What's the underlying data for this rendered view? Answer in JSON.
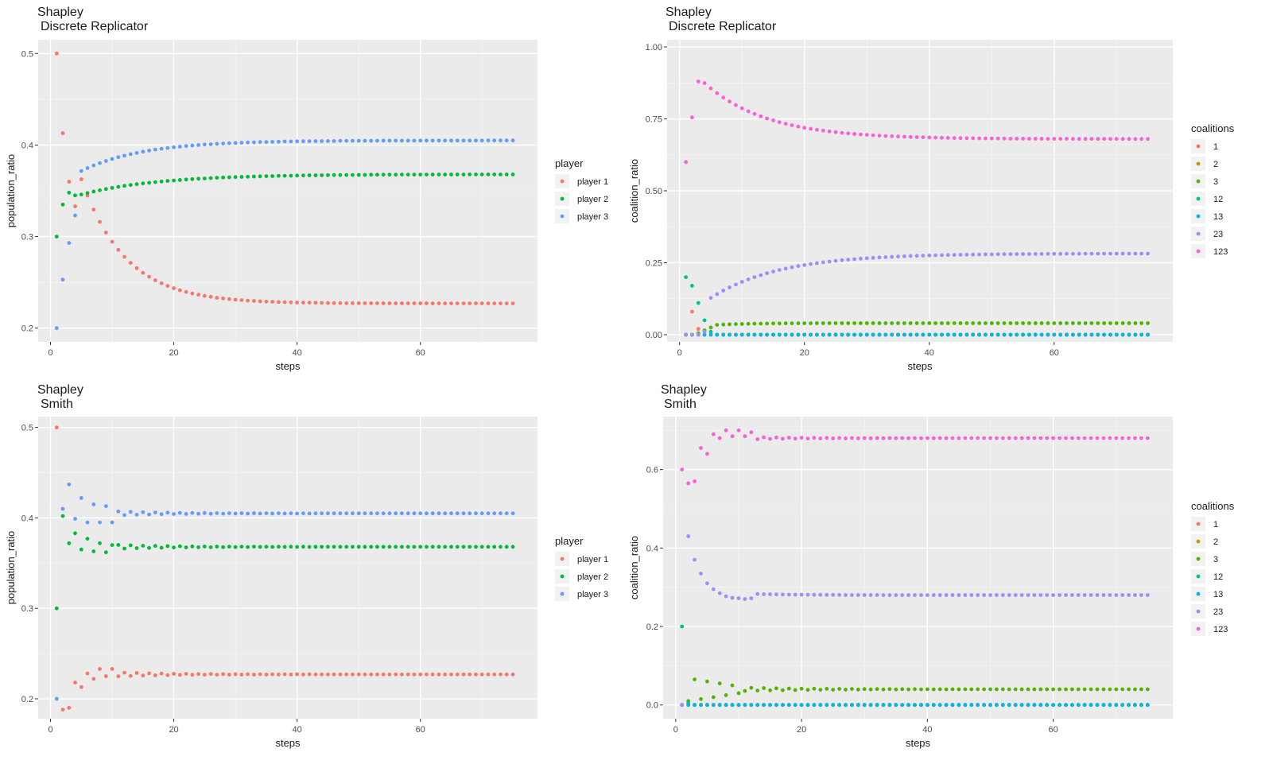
{
  "chart_data": [
    {
      "type": "scatter",
      "title": "Shapley",
      "subtitle": "Discrete Replicator",
      "xlabel": "steps",
      "ylabel": "population_ratio",
      "xlim": [
        -2,
        79
      ],
      "ylim": [
        0.185,
        0.515
      ],
      "xticks": [
        "0",
        "20",
        "40",
        "60"
      ],
      "yticks": [
        "0.2",
        "0.3",
        "0.4",
        "0.5"
      ],
      "xtick_values": [
        0,
        20,
        40,
        60
      ],
      "ytick_values": [
        0.2,
        0.3,
        0.4,
        0.5
      ],
      "grid": true,
      "legend_title": "player",
      "legend_position": "right",
      "series": [
        {
          "name": "player 1",
          "color": "#F8766D",
          "model": "decay",
          "start": 0.5,
          "end": 0.227,
          "rate": 0.14,
          "points": [
            [
              1,
              0.5
            ],
            [
              2,
              0.413
            ],
            [
              3,
              0.36
            ],
            [
              4,
              0.333
            ]
          ]
        },
        {
          "name": "player 2",
          "color": "#00BA38",
          "model": "decay",
          "start": 0.335,
          "end": 0.368,
          "rate": 0.08,
          "points": [
            [
              1,
              0.3
            ],
            [
              2,
              0.335
            ],
            [
              3,
              0.348
            ],
            [
              4,
              0.345
            ]
          ]
        },
        {
          "name": "player 3",
          "color": "#619CFF",
          "model": "decay",
          "start": 0.35,
          "end": 0.405,
          "rate": 0.1,
          "points": [
            [
              1,
              0.2
            ],
            [
              2,
              0.253
            ],
            [
              3,
              0.293
            ],
            [
              4,
              0.323
            ]
          ]
        }
      ]
    },
    {
      "type": "scatter",
      "title": "Shapley",
      "subtitle": "Discrete Replicator",
      "xlabel": "steps",
      "ylabel": "coalition_ratio",
      "xlim": [
        -2,
        79
      ],
      "ylim": [
        -0.025,
        1.025
      ],
      "xticks": [
        "0",
        "20",
        "40",
        "60"
      ],
      "yticks": [
        "0.00",
        "0.25",
        "0.50",
        "0.75",
        "1.00"
      ],
      "xtick_values": [
        0,
        20,
        40,
        60
      ],
      "ytick_values": [
        0,
        0.25,
        0.5,
        0.75,
        1.0
      ],
      "grid": true,
      "legend_title": "coalitions",
      "legend_position": "right",
      "series": [
        {
          "name": "1",
          "color": "#F8766D",
          "model": "decay",
          "start": 0,
          "end": 0,
          "rate": 1,
          "points": [
            [
              1,
              0
            ],
            [
              2,
              0.08
            ],
            [
              3,
              0.02
            ]
          ]
        },
        {
          "name": "2",
          "color": "#C49A00",
          "model": "decay",
          "start": 0,
          "end": 0,
          "rate": 1,
          "points": [
            [
              1,
              0
            ],
            [
              2,
              0
            ],
            [
              3,
              0
            ]
          ]
        },
        {
          "name": "3",
          "color": "#53B400",
          "model": "decay",
          "start": 0.02,
          "end": 0.04,
          "rate": 0.2,
          "points": [
            [
              1,
              0
            ],
            [
              2,
              0
            ],
            [
              3,
              0.005
            ],
            [
              4,
              0.015
            ],
            [
              5,
              0.025
            ]
          ]
        },
        {
          "name": "12",
          "color": "#00C094",
          "model": "decay",
          "start": 0,
          "end": 0,
          "rate": 1,
          "points": [
            [
              1,
              0.2
            ],
            [
              2,
              0.17
            ],
            [
              3,
              0.11
            ],
            [
              4,
              0.05
            ],
            [
              5,
              0.01
            ]
          ]
        },
        {
          "name": "13",
          "color": "#00B6EB",
          "model": "decay",
          "start": 0,
          "end": 0,
          "rate": 1,
          "points": []
        },
        {
          "name": "23",
          "color": "#A58AFF",
          "model": "decay",
          "start": 0.04,
          "end": 0.282,
          "rate": 0.09,
          "points": [
            [
              1,
              0
            ],
            [
              2,
              0
            ],
            [
              3,
              0
            ],
            [
              4,
              0.01
            ]
          ]
        },
        {
          "name": "123",
          "color": "#FB61D7",
          "model": "decay",
          "start": 0.97,
          "end": 0.68,
          "rate": 0.1,
          "points": [
            [
              1,
              0.6
            ],
            [
              2,
              0.755
            ],
            [
              3,
              0.88
            ]
          ]
        }
      ]
    },
    {
      "type": "scatter",
      "title": "Shapley",
      "subtitle": "Smith",
      "xlabel": "steps",
      "ylabel": "population_ratio",
      "xlim": [
        -2,
        79
      ],
      "ylim": [
        0.178,
        0.512
      ],
      "xticks": [
        "0",
        "20",
        "40",
        "60"
      ],
      "yticks": [
        "0.2",
        "0.3",
        "0.4",
        "0.5"
      ],
      "xtick_values": [
        0,
        20,
        40,
        60
      ],
      "ytick_values": [
        0.2,
        0.3,
        0.4,
        0.5
      ],
      "grid": true,
      "legend_title": "player",
      "legend_position": "right",
      "series": [
        {
          "name": "player 1",
          "color": "#F8766D",
          "model": "osc",
          "end": 0.227,
          "amp": 0.008,
          "decay": 0.12,
          "points": [
            [
              1,
              0.5
            ],
            [
              2,
              0.188
            ],
            [
              3,
              0.19
            ],
            [
              4,
              0.218
            ],
            [
              5,
              0.213
            ],
            [
              6,
              0.228
            ],
            [
              7,
              0.222
            ],
            [
              8,
              0.233
            ],
            [
              9,
              0.225
            ],
            [
              10,
              0.233
            ]
          ]
        },
        {
          "name": "player 2",
          "color": "#00BA38",
          "model": "osc",
          "end": 0.368,
          "amp": -0.008,
          "decay": 0.12,
          "points": [
            [
              1,
              0.3
            ],
            [
              2,
              0.402
            ],
            [
              3,
              0.372
            ],
            [
              4,
              0.383
            ],
            [
              5,
              0.365
            ],
            [
              6,
              0.377
            ],
            [
              7,
              0.363
            ],
            [
              8,
              0.372
            ],
            [
              9,
              0.362
            ],
            [
              10,
              0.37
            ]
          ]
        },
        {
          "name": "player 3",
          "color": "#619CFF",
          "model": "osc",
          "end": 0.405,
          "amp": -0.008,
          "decay": 0.12,
          "points": [
            [
              1,
              0.2
            ],
            [
              2,
              0.41
            ],
            [
              3,
              0.437
            ],
            [
              4,
              0.399
            ],
            [
              5,
              0.422
            ],
            [
              6,
              0.395
            ],
            [
              7,
              0.415
            ],
            [
              8,
              0.395
            ],
            [
              9,
              0.413
            ],
            [
              10,
              0.395
            ]
          ]
        }
      ]
    },
    {
      "type": "scatter",
      "title": "Shapley",
      "subtitle": "Smith",
      "xlabel": "steps",
      "ylabel": "coalition_ratio",
      "xlim": [
        -2,
        79
      ],
      "ylim": [
        -0.035,
        0.735
      ],
      "xticks": [
        "0",
        "20",
        "40",
        "60"
      ],
      "yticks": [
        "0.0",
        "0.2",
        "0.4",
        "0.6"
      ],
      "xtick_values": [
        0,
        20,
        40,
        60
      ],
      "ytick_values": [
        0,
        0.2,
        0.4,
        0.6
      ],
      "grid": true,
      "legend_title": "coalitions",
      "legend_position": "right",
      "series": [
        {
          "name": "1",
          "color": "#F8766D",
          "model": "decay",
          "start": 0,
          "end": 0,
          "rate": 1,
          "points": [
            [
              1,
              0
            ]
          ]
        },
        {
          "name": "2",
          "color": "#C49A00",
          "model": "decay",
          "start": 0,
          "end": 0,
          "rate": 1,
          "points": [
            [
              1,
              0
            ]
          ]
        },
        {
          "name": "3",
          "color": "#53B400",
          "model": "osc",
          "end": 0.04,
          "amp": 0.012,
          "decay": 0.1,
          "points": [
            [
              1,
              0
            ],
            [
              2,
              0.01
            ],
            [
              3,
              0.065
            ],
            [
              4,
              0.015
            ],
            [
              5,
              0.06
            ],
            [
              6,
              0.02
            ],
            [
              7,
              0.055
            ],
            [
              8,
              0.025
            ],
            [
              9,
              0.05
            ],
            [
              10,
              0.03
            ]
          ]
        },
        {
          "name": "12",
          "color": "#00C094",
          "model": "decay",
          "start": 0,
          "end": 0,
          "rate": 1,
          "points": [
            [
              1,
              0.2
            ],
            [
              2,
              0.005
            ]
          ]
        },
        {
          "name": "13",
          "color": "#00B6EB",
          "model": "decay",
          "start": 0,
          "end": 0,
          "rate": 1,
          "points": []
        },
        {
          "name": "23",
          "color": "#A58AFF",
          "model": "decay",
          "start": 0.3,
          "end": 0.28,
          "rate": 0.15,
          "points": [
            [
              1,
              0
            ],
            [
              2,
              0.43
            ],
            [
              3,
              0.37
            ],
            [
              4,
              0.335
            ],
            [
              5,
              0.31
            ],
            [
              6,
              0.295
            ],
            [
              7,
              0.285
            ],
            [
              8,
              0.277
            ],
            [
              9,
              0.273
            ],
            [
              10,
              0.272
            ],
            [
              11,
              0.27
            ],
            [
              12,
              0.272
            ]
          ]
        },
        {
          "name": "123",
          "color": "#FB61D7",
          "model": "osc",
          "end": 0.68,
          "amp": 0.012,
          "decay": 0.12,
          "points": [
            [
              1,
              0.6
            ],
            [
              2,
              0.565
            ],
            [
              3,
              0.57
            ],
            [
              4,
              0.655
            ],
            [
              5,
              0.64
            ],
            [
              6,
              0.69
            ],
            [
              7,
              0.68
            ],
            [
              8,
              0.7
            ],
            [
              9,
              0.685
            ],
            [
              10,
              0.7
            ],
            [
              11,
              0.685
            ],
            [
              12,
              0.695
            ]
          ]
        }
      ]
    }
  ]
}
